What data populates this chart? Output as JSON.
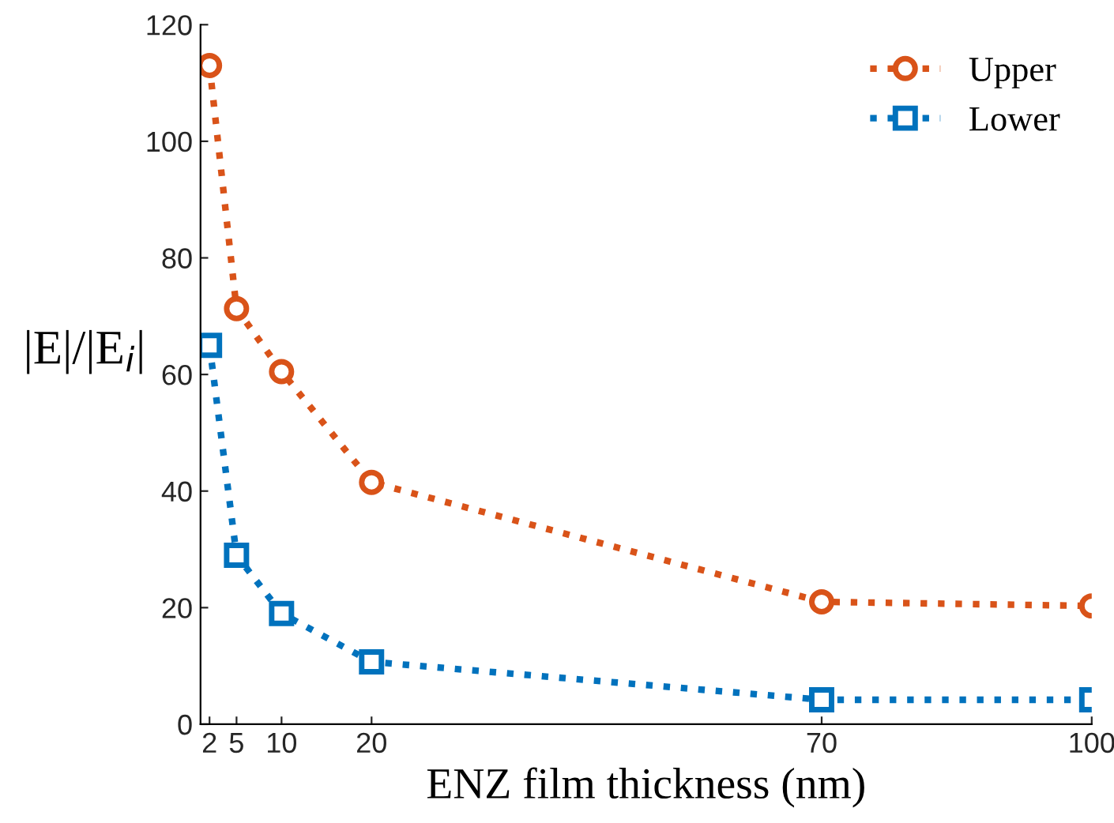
{
  "chart_data": {
    "type": "line",
    "xlabel": "ENZ film thickness (nm)",
    "ylabel": "|E|/|E$_{i}$|",
    "x": [
      2,
      5,
      10,
      20,
      70,
      100
    ],
    "series": [
      {
        "name": "Upper",
        "color": "#d95319",
        "marker": "circle",
        "values": [
          113,
          71.3,
          60.5,
          41.5,
          21,
          20.3
        ]
      },
      {
        "name": "Lower",
        "color": "#0072bd",
        "marker": "square",
        "values": [
          65,
          29,
          19,
          10.7,
          4.2,
          4.2
        ]
      }
    ],
    "xlim": [
      1,
      100
    ],
    "xticks": [
      2,
      5,
      10,
      20,
      70,
      100
    ],
    "ylim": [
      0,
      120
    ],
    "yticks": [
      0,
      20,
      40,
      60,
      80,
      100,
      120
    ],
    "line_style": "dotted",
    "legend": "top right",
    "grid": false
  }
}
